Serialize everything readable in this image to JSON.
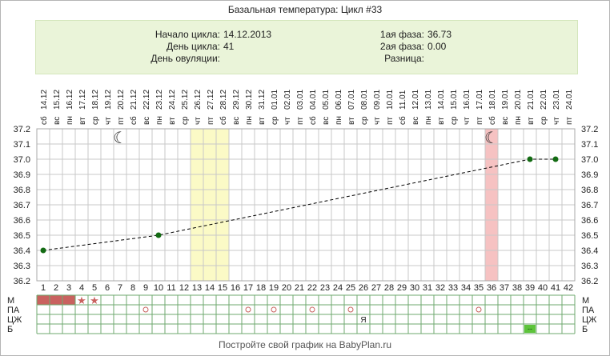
{
  "title": "Базальная температура: Цикл #33",
  "info": {
    "cycle_start_label": "Начало цикла:",
    "cycle_start": "14.12.2013",
    "cycle_day_label": "День цикла:",
    "cycle_day": "41",
    "ovulation_day_label": "День овуляции:",
    "ovulation_day": "",
    "phase1_label": "1ая фаза:",
    "phase1": "36.73",
    "phase2_label": "2ая фаза:",
    "phase2": "0.00",
    "difference_label": "Разница:",
    "difference": ""
  },
  "footer": "Постройте свой график на BabyPlan.ru",
  "chart_data": {
    "type": "line",
    "y_ticks": [
      "37.2",
      "37.1",
      "37.0",
      "36.9",
      "36.8",
      "36.7",
      "36.6",
      "36.5",
      "36.4",
      "36.3",
      "36.2"
    ],
    "ylim": [
      36.2,
      37.2
    ],
    "weekdays": [
      "сб",
      "вс",
      "пн",
      "вт",
      "ср",
      "чт",
      "пт",
      "сб",
      "вс",
      "пн",
      "вт",
      "ср",
      "чт",
      "пт",
      "сб",
      "вс",
      "пн",
      "вт",
      "ср",
      "чт",
      "пт",
      "сб",
      "вс",
      "пн",
      "вт",
      "ср",
      "чт",
      "пт",
      "сб",
      "вс",
      "пн",
      "вт",
      "ср",
      "чт",
      "пт",
      "сб",
      "вс",
      "пн",
      "вт",
      "ср",
      "чт",
      "пт"
    ],
    "dates": [
      "14.12",
      "15.12",
      "16.12",
      "17.12",
      "18.12",
      "19.12",
      "20.12",
      "21.12",
      "22.12",
      "23.12",
      "24.12",
      "25.12",
      "26.12",
      "27.12",
      "28.12",
      "29.12",
      "30.12",
      "31.12",
      "01.01",
      "02.01",
      "03.01",
      "04.01",
      "05.01",
      "06.01",
      "07.01",
      "08.01",
      "09.01",
      "10.01",
      "11.01",
      "12.01",
      "13.01",
      "14.01",
      "15.01",
      "16.01",
      "17.01",
      "18.01",
      "19.01",
      "20.01",
      "21.01",
      "22.01",
      "23.01",
      "24.01"
    ],
    "cycle_days": [
      "1",
      "2",
      "3",
      "4",
      "5",
      "6",
      "7",
      "8",
      "9",
      "10",
      "11",
      "12",
      "13",
      "14",
      "15",
      "16",
      "17",
      "18",
      "19",
      "20",
      "21",
      "22",
      "23",
      "24",
      "25",
      "26",
      "27",
      "28",
      "29",
      "30",
      "31",
      "32",
      "33",
      "34",
      "35",
      "36",
      "37",
      "38",
      "39",
      "40",
      "41",
      "42"
    ],
    "series": [
      {
        "values": [
          {
            "day": 1,
            "temp": 36.4
          },
          {
            "day": 10,
            "temp": 36.5
          },
          {
            "day": 39,
            "temp": 37.0
          },
          {
            "day": 41,
            "temp": 37.0
          }
        ]
      }
    ],
    "moon_days": [
      7,
      36
    ],
    "highlight_yellow": [
      13,
      15
    ],
    "highlight_pink": [
      36,
      36
    ],
    "colors": {
      "line": "#000000",
      "point": "#136b13",
      "yellow": "#fbfac6",
      "pink": "#f6c2c2",
      "grid": "#c8c8c8",
      "menses": "#c9625f",
      "note_green": "#5dc43a"
    },
    "table_rows": [
      {
        "label": "М",
        "filled": [
          1,
          2,
          3
        ],
        "stars": [
          4,
          5
        ]
      },
      {
        "label": "ПА",
        "circles": [
          9,
          17,
          19,
          22,
          25,
          35
        ]
      },
      {
        "label": "ЦЖ",
        "text_marks": [
          {
            "day": 26,
            "text": "Я"
          }
        ]
      },
      {
        "label": "Б",
        "green_marks": [
          {
            "day": 39,
            "text": "--"
          }
        ]
      }
    ]
  }
}
